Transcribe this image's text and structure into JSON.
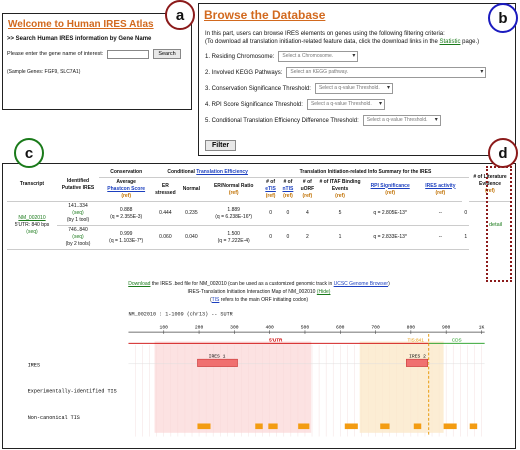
{
  "panelA": {
    "title": "Welcome to Human IRES Atlas",
    "subtitle": ">> Search Human IRES information by Gene Name",
    "input_label": "Please enter the gene name of interest:",
    "input_value": "",
    "search_button": "Search",
    "sample": "(Sample Genes: FGF9, SLC7A1)"
  },
  "panelB": {
    "title": "Browse the Database",
    "intro_1": "In this part, users can browse IRES elements on genes using the following filtering criteria:",
    "intro_2": "(To download all translation initiation-related feature data, click the download links in the",
    "intro_link": "Statistic",
    "intro_3": "page.)",
    "filters": [
      {
        "label": "1. Residing Chromosome:",
        "placeholder": "Select a Chromosome."
      },
      {
        "label": "2. Involved KEGG Pathways:",
        "placeholder": "Select an KEGG pathway."
      },
      {
        "label": "3. Conservation Significance Threshold:",
        "placeholder": "Select a q-value Threshold."
      },
      {
        "label": "4. RPI Score Significance Threshold:",
        "placeholder": "Select a q-value Threshold."
      },
      {
        "label": "5. Conditional Translation Efficiency Difference Threshold:",
        "placeholder": "Select a q-value Threshold."
      }
    ],
    "filter_button": "Filter"
  },
  "markers": {
    "a": "a",
    "b": "b",
    "c": "c",
    "d": "d"
  },
  "table": {
    "group_conservation": "Conservation",
    "group_cte_prefix": "Conditional",
    "group_cte_link": "Translation Efficiency",
    "group_tiis": "Translation Initiation-related Info Summary for the IRES",
    "h_transcript": "Transcript",
    "h_ires": "Identified Putative IRES",
    "h_avg_prefix": "Average",
    "h_avg_link": "Phastcon Score",
    "h_er": "ER stressed",
    "h_normal": "Normal",
    "h_ratio": "ER/Normal Ratio",
    "h_etis_prefix": "# of",
    "h_etis": "eTIS",
    "h_ntis_prefix": "# of",
    "h_ntis": "nTIS",
    "h_uorf_prefix": "# of",
    "h_uorf": "uORF",
    "h_itaf": "# of ITAF Binding Events",
    "h_rpi": "RPI Significance",
    "h_activity": "IRES activity",
    "h_lit": "# of Literature Evidence",
    "ref": "(ref)",
    "transcript_id": "NM_002010",
    "transcript_info": "5'UTR: 840 bps",
    "seq": "(seq)",
    "detail": "detail",
    "rows": [
      {
        "range": "141..334",
        "seq": "(seq)",
        "tools": "(by 1 tool)",
        "score": "0.888",
        "q": "(q = 2.355E-3)",
        "er": "0.444",
        "normal": "0.235",
        "ratio": "1.889",
        "ratio_q": "(q = 6.238E-16*)",
        "etis": "0",
        "ntis": "0",
        "uorf": "4",
        "itaf": "5",
        "rpi": "q = 2.805E-13*",
        "activity": "--",
        "lit": "0"
      },
      {
        "range": "746..840",
        "seq": "(seq)",
        "tools": "(by 2 tools)",
        "score": "0.999",
        "q": "(q = 1.103E-7*)",
        "er": "0.060",
        "normal": "0.040",
        "ratio": "1.500",
        "ratio_q": "(q = 7.222E-4)",
        "etis": "0",
        "ntis": "0",
        "uorf": "2",
        "itaf": "1",
        "rpi": "q = 2.833E-13*",
        "activity": "--",
        "lit": "1"
      }
    ]
  },
  "links": {
    "download": "Download",
    "bed_text": "the IRES .bed file for NM_002010 (can be used as a customized genomic track in",
    "ucsc": "UCSC Genome Browser",
    "bed_end": ")",
    "map_title": "IRES-Translation Initiation Interaction Map of NM_002010",
    "hide": "(Hide)",
    "tis_link": "TIS",
    "tis_text": "refers to the main ORF initiating codon)"
  },
  "map": {
    "header": "NM_002010 : 1-1009 (chr13) -- SUTR",
    "ticks": [
      "100",
      "200",
      "300",
      "400",
      "500",
      "600",
      "700",
      "800",
      "900",
      "1K"
    ],
    "utr_label": "5'UTR",
    "tis_label": "TIS:841",
    "cds_label": "CDS",
    "track_ires": "IRES",
    "track_eti": "Experimentally-identified TIS",
    "track_nc": "Non-canonical TIS",
    "ires1_label": "IRES 1",
    "ires2_label": "IRES 2",
    "colors": {
      "utr": "#cc0000",
      "tis": "#e69500",
      "cds": "#1a9a1a",
      "ires": "#f07070",
      "nctis": "#f39c12"
    }
  }
}
